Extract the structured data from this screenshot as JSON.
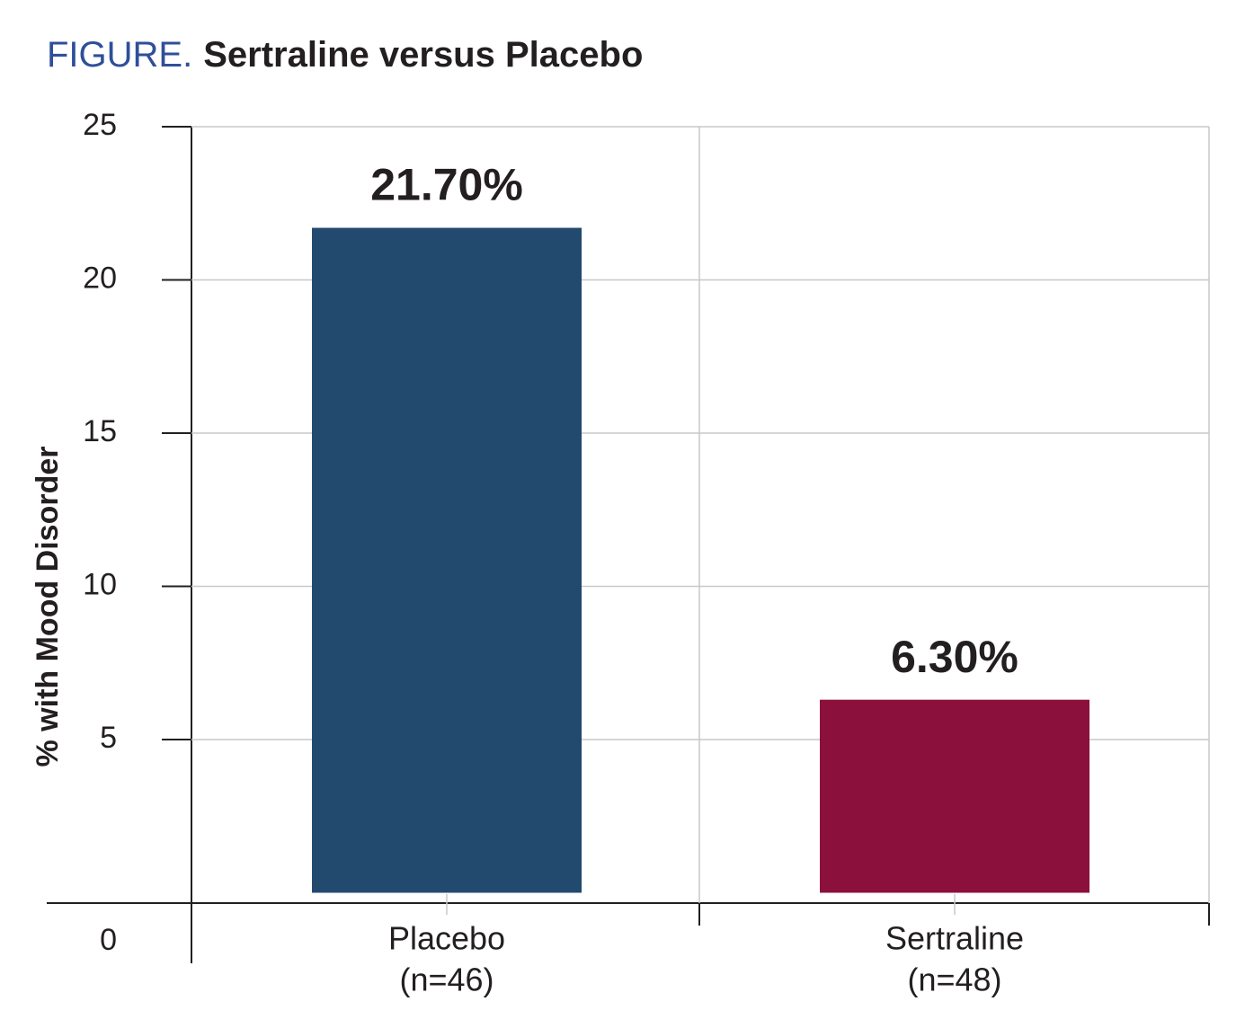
{
  "chart_data": {
    "type": "bar",
    "title_prefix": "FIGURE.",
    "title": "Sertraline versus Placebo",
    "y_label": "% with Mood Disorder",
    "categories": [
      "Placebo",
      "Sertraline"
    ],
    "category_subtitles": [
      "(n=46)",
      "(n=48)"
    ],
    "values": [
      21.7,
      6.3
    ],
    "value_labels": [
      "21.70%",
      "6.30%"
    ],
    "colors": [
      "#224a6e",
      "#8c103c"
    ],
    "ylim": [
      0,
      25
    ],
    "yticks": [
      0,
      5,
      10,
      15,
      20,
      25
    ],
    "grid": true
  }
}
